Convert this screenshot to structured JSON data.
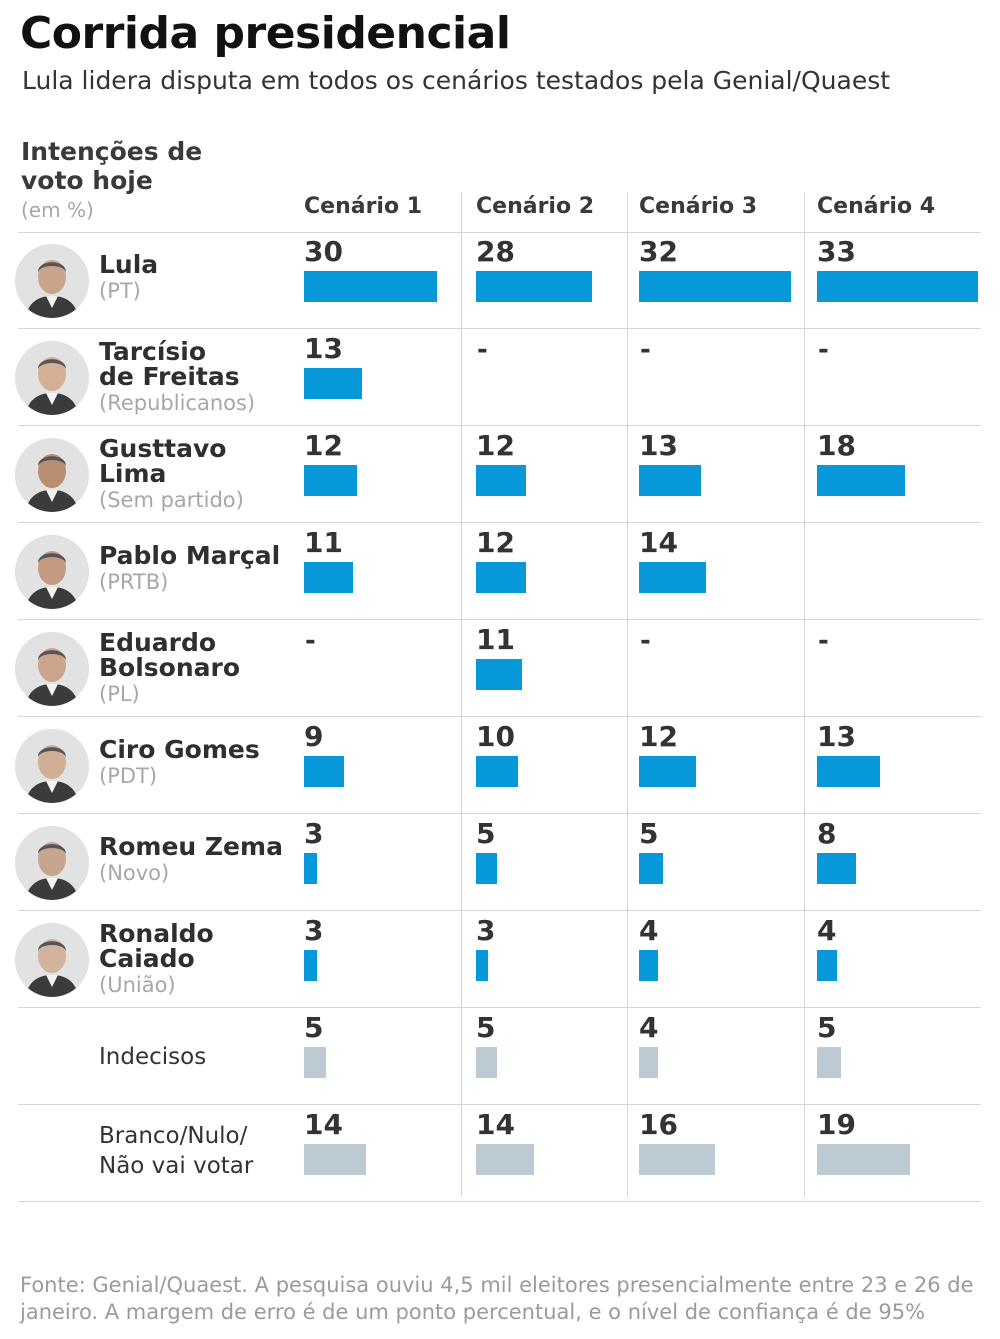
{
  "title": "Corrida presidencial",
  "subtitle": "Lula lidera disputa em todos os cenários testados pela Genial/Quaest",
  "ylabel": "Intenções de voto hoje",
  "unit": "(em %)",
  "source": "Fonte: Genial/Quaest. A pesquisa ouviu 4,5 mil eleitores presencialmente entre 23 e 26 de janeiro. A margem de erro é de um ponto percentual, e o nível de confiança é de 95%",
  "colors": {
    "candidate_bar": "#0698d8",
    "other_bar": "#bccbd3",
    "divider": "#d6d6d6"
  },
  "chart_data": {
    "type": "bar",
    "title": "Corrida presidencial",
    "subtitle": "Lula lidera disputa em todos os cenários testados pela Genial/Quaest",
    "unit": "%",
    "scenarios": [
      "Cenário 1",
      "Cenário 2",
      "Cenário 3",
      "Cenário 4"
    ],
    "rows": [
      {
        "name_lines": [
          "Lula"
        ],
        "party": "(PT)",
        "kind": "candidate",
        "icon": "lula-photo-icon",
        "values": [
          30,
          28,
          32,
          33
        ],
        "display": [
          "30",
          "28",
          "32",
          "33"
        ]
      },
      {
        "name_lines": [
          "Tarcísio",
          "de Freitas"
        ],
        "party": "(Republicanos)",
        "kind": "candidate",
        "icon": "tarcisio-photo-icon",
        "values": [
          13,
          null,
          null,
          null
        ],
        "display": [
          "13",
          "-",
          "-",
          "-"
        ]
      },
      {
        "name_lines": [
          "Gusttavo",
          "Lima"
        ],
        "party": "(Sem partido)",
        "kind": "candidate",
        "icon": "gusttavo-photo-icon",
        "values": [
          12,
          12,
          13,
          18
        ],
        "display": [
          "12",
          "12",
          "13",
          "18"
        ]
      },
      {
        "name_lines": [
          "Pablo Marçal"
        ],
        "party": "(PRTB)",
        "kind": "candidate",
        "icon": "marcal-photo-icon",
        "values": [
          11,
          12,
          14,
          null
        ],
        "display": [
          "11",
          "12",
          "14",
          ""
        ]
      },
      {
        "name_lines": [
          "Eduardo",
          "Bolsonaro"
        ],
        "party": "(PL)",
        "kind": "candidate",
        "icon": "eduardo-photo-icon",
        "values": [
          null,
          11,
          null,
          null
        ],
        "display": [
          "-",
          "11",
          "-",
          "-"
        ]
      },
      {
        "name_lines": [
          "Ciro Gomes"
        ],
        "party": "(PDT)",
        "kind": "candidate",
        "icon": "ciro-photo-icon",
        "values": [
          9,
          10,
          12,
          13
        ],
        "display": [
          "9",
          "10",
          "12",
          "13"
        ]
      },
      {
        "name_lines": [
          "Romeu Zema"
        ],
        "party": "(Novo)",
        "kind": "candidate",
        "icon": "zema-photo-icon",
        "values": [
          3,
          5,
          5,
          8
        ],
        "display": [
          "3",
          "5",
          "5",
          "8"
        ]
      },
      {
        "name_lines": [
          "Ronaldo",
          "Caiado"
        ],
        "party": "(União)",
        "kind": "candidate",
        "icon": "caiado-photo-icon",
        "values": [
          3,
          3,
          4,
          4
        ],
        "display": [
          "3",
          "3",
          "4",
          "4"
        ]
      },
      {
        "name_lines": [
          "Indecisos"
        ],
        "party": "",
        "kind": "other",
        "values": [
          5,
          5,
          4,
          5
        ],
        "display": [
          "5",
          "5",
          "4",
          "5"
        ]
      },
      {
        "name_lines": [
          "Branco/Nulo/",
          "Não vai votar"
        ],
        "party": "",
        "kind": "other",
        "values": [
          14,
          14,
          16,
          19
        ],
        "display": [
          "14",
          "14",
          "16",
          "19"
        ]
      }
    ]
  }
}
